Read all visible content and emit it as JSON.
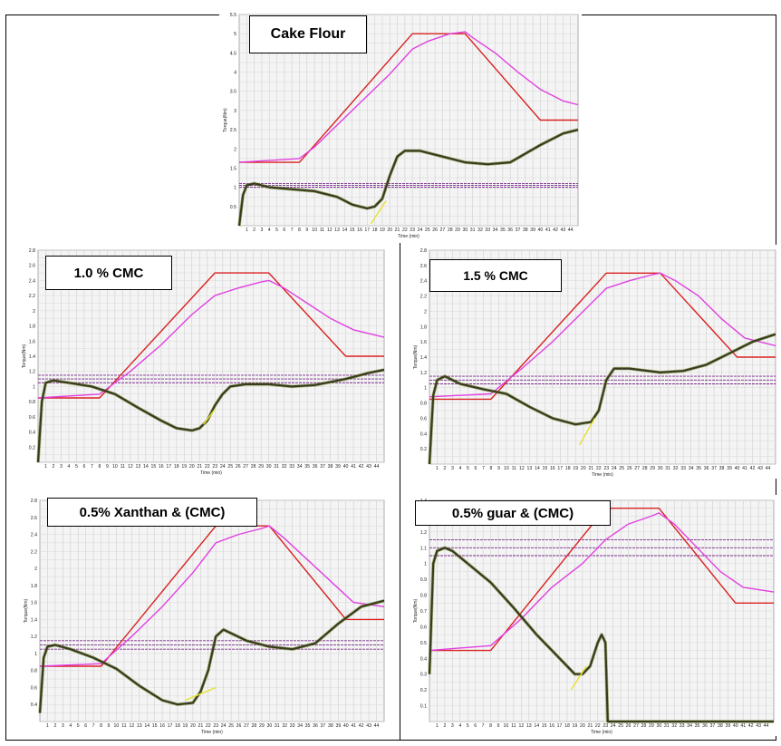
{
  "chart_data": [
    {
      "id": "p-cake",
      "type": "line",
      "title": "Cake Flour",
      "xlabel": "Time (min)",
      "ylabel": "Torque(Nm)",
      "xlim": [
        0,
        45
      ],
      "ylim": [
        0,
        5.5
      ],
      "yticks": [
        0.5,
        1,
        1.5,
        2,
        2.5,
        3,
        3.5,
        4,
        4.5,
        5,
        5.5
      ],
      "ytick_labels": [
        "0.5",
        "1",
        "1.5",
        "2",
        "2.5",
        "3",
        "3.5",
        "4",
        "4.5",
        "5",
        "5.5"
      ],
      "xticks": [
        1,
        2,
        3,
        4,
        5,
        6,
        7,
        8,
        9,
        10,
        11,
        12,
        13,
        14,
        15,
        16,
        17,
        18,
        19,
        20,
        21,
        22,
        23,
        24,
        25,
        26,
        27,
        28,
        29,
        30,
        31,
        32,
        33,
        34,
        35,
        36,
        37,
        38,
        39,
        40,
        41,
        42,
        43,
        44
      ],
      "hlines": [
        1.0,
        1.05,
        1.1
      ],
      "series": [
        {
          "color": "#d92020",
          "x": [
            0,
            8,
            23,
            30,
            40,
            45
          ],
          "y": [
            1.65,
            1.65,
            5.0,
            5.0,
            2.75,
            2.75
          ]
        },
        {
          "color": "#e040e0",
          "x": [
            0,
            8,
            10,
            15,
            20,
            23,
            25,
            28,
            30,
            31,
            34,
            37,
            40,
            43,
            45
          ],
          "y": [
            1.65,
            1.75,
            2.05,
            3.0,
            3.95,
            4.6,
            4.8,
            5.0,
            5.05,
            4.9,
            4.5,
            4.0,
            3.55,
            3.25,
            3.15
          ]
        },
        {
          "color": "#3a3a20",
          "x": [
            0,
            0.5,
            1,
            2,
            4,
            7,
            10,
            13,
            15,
            17,
            18,
            19,
            20,
            21,
            22,
            24,
            27,
            30,
            33,
            36,
            40,
            43,
            45
          ],
          "y": [
            0,
            0.8,
            1.05,
            1.1,
            1.0,
            0.95,
            0.9,
            0.75,
            0.55,
            0.45,
            0.5,
            0.7,
            1.3,
            1.8,
            1.95,
            1.95,
            1.8,
            1.65,
            1.6,
            1.65,
            2.1,
            2.4,
            2.5
          ]
        },
        {
          "color": "#e8e030",
          "x": [
            17.5,
            19.5
          ],
          "y": [
            0.05,
            0.65
          ]
        }
      ]
    },
    {
      "id": "p-cmc10",
      "type": "line",
      "title": "1.0 % CMC",
      "xlabel": "Time (min)",
      "ylabel": "Torque(Nm)",
      "xlim": [
        0,
        45
      ],
      "ylim": [
        0,
        2.8
      ],
      "yticks": [
        0.2,
        0.4,
        0.6,
        0.8,
        1,
        1.2,
        1.4,
        1.6,
        1.8,
        2,
        2.2,
        2.4,
        2.6,
        2.8
      ],
      "ytick_labels": [
        "0.2",
        "0.4",
        "0.6",
        "0.8",
        "1",
        "1.2",
        "1.4",
        "1.6",
        "1.8",
        "2",
        "2.2",
        "2.4",
        "2.6",
        "2.8"
      ],
      "xticks": [
        1,
        2,
        3,
        4,
        5,
        6,
        7,
        8,
        9,
        10,
        11,
        12,
        13,
        14,
        15,
        16,
        17,
        18,
        19,
        20,
        21,
        22,
        23,
        24,
        25,
        26,
        27,
        28,
        29,
        30,
        31,
        32,
        33,
        34,
        35,
        36,
        37,
        38,
        39,
        40,
        41,
        42,
        43,
        44
      ],
      "hlines": [
        1.05,
        1.1,
        1.15
      ],
      "series": [
        {
          "color": "#d92020",
          "x": [
            0,
            8,
            23,
            30,
            40,
            45
          ],
          "y": [
            0.85,
            0.85,
            2.5,
            2.5,
            1.4,
            1.4
          ]
        },
        {
          "color": "#e040e0",
          "x": [
            0,
            8,
            12,
            16,
            20,
            23,
            26,
            29,
            30,
            32,
            35,
            38,
            41,
            45
          ],
          "y": [
            0.85,
            0.9,
            1.2,
            1.55,
            1.95,
            2.2,
            2.3,
            2.38,
            2.4,
            2.3,
            2.1,
            1.9,
            1.75,
            1.65
          ]
        },
        {
          "color": "#3a3a20",
          "x": [
            0,
            0.5,
            1,
            2,
            4,
            7,
            10,
            13,
            16,
            18,
            20,
            21,
            22,
            23,
            24,
            25,
            27,
            30,
            33,
            36,
            40,
            43,
            45
          ],
          "y": [
            0,
            0.8,
            1.05,
            1.08,
            1.05,
            1.0,
            0.9,
            0.72,
            0.55,
            0.45,
            0.42,
            0.45,
            0.55,
            0.75,
            0.9,
            1.0,
            1.03,
            1.03,
            1.0,
            1.02,
            1.1,
            1.18,
            1.22
          ]
        },
        {
          "color": "#e8e030",
          "x": [
            21.5,
            23
          ],
          "y": [
            0.5,
            0.7
          ]
        }
      ]
    },
    {
      "id": "p-cmc15",
      "type": "line",
      "title": "1.5 % CMC",
      "xlabel": "Time (min)",
      "ylabel": "Torque(Nm)",
      "xlim": [
        0,
        45
      ],
      "ylim": [
        0,
        2.8
      ],
      "yticks": [
        0.2,
        0.4,
        0.6,
        0.8,
        1,
        1.2,
        1.4,
        1.6,
        1.8,
        2,
        2.2,
        2.4,
        2.6,
        2.8
      ],
      "ytick_labels": [
        "0.2",
        "0.4",
        "0.6",
        "0.8",
        "1",
        "1.2",
        "1.4",
        "1.6",
        "1.8",
        "2",
        "2.2",
        "2.4",
        "2.6",
        "2.8"
      ],
      "xticks": [
        1,
        2,
        3,
        4,
        5,
        6,
        7,
        8,
        9,
        10,
        11,
        12,
        13,
        14,
        15,
        16,
        17,
        18,
        19,
        20,
        21,
        22,
        23,
        24,
        25,
        26,
        27,
        28,
        29,
        30,
        31,
        32,
        33,
        34,
        35,
        36,
        37,
        38,
        39,
        40,
        41,
        42,
        43,
        44
      ],
      "hlines": [
        1.05,
        1.1,
        1.15
      ],
      "series": [
        {
          "color": "#d92020",
          "x": [
            0,
            8,
            23,
            30,
            40,
            45
          ],
          "y": [
            0.85,
            0.85,
            2.5,
            2.5,
            1.4,
            1.4
          ]
        },
        {
          "color": "#e040e0",
          "x": [
            0,
            8,
            12,
            16,
            20,
            23,
            26,
            29,
            30,
            32,
            35,
            38,
            41,
            45
          ],
          "y": [
            0.88,
            0.92,
            1.25,
            1.6,
            2.0,
            2.3,
            2.4,
            2.48,
            2.5,
            2.4,
            2.2,
            1.9,
            1.65,
            1.55
          ]
        },
        {
          "color": "#3a3a20",
          "x": [
            0,
            0.5,
            1,
            2,
            4,
            7,
            10,
            13,
            16,
            19,
            21,
            22,
            23,
            24,
            26,
            30,
            33,
            36,
            39,
            42,
            45
          ],
          "y": [
            0,
            0.9,
            1.1,
            1.15,
            1.05,
            0.98,
            0.92,
            0.75,
            0.6,
            0.52,
            0.55,
            0.7,
            1.1,
            1.25,
            1.25,
            1.2,
            1.22,
            1.3,
            1.45,
            1.6,
            1.7
          ]
        },
        {
          "color": "#e8e030",
          "x": [
            19.5,
            21.5
          ],
          "y": [
            0.25,
            0.6
          ]
        }
      ]
    },
    {
      "id": "p-xan",
      "type": "line",
      "title": "0.5% Xanthan & (CMC)",
      "xlabel": "Time (min)",
      "ylabel": "Torque(Nm)",
      "xlim": [
        0,
        45
      ],
      "ylim": [
        0.2,
        2.8
      ],
      "yticks": [
        0.4,
        0.6,
        0.8,
        1,
        1.2,
        1.4,
        1.6,
        1.8,
        2,
        2.2,
        2.4,
        2.6,
        2.8
      ],
      "ytick_labels": [
        "0.4",
        "0.6",
        "0.8",
        "1",
        "1.2",
        "1.4",
        "1.6",
        "1.8",
        "2",
        "2.2",
        "2.4",
        "2.6",
        "2.8"
      ],
      "xticks": [
        1,
        2,
        3,
        4,
        5,
        6,
        7,
        8,
        9,
        10,
        11,
        12,
        13,
        14,
        15,
        16,
        17,
        18,
        19,
        20,
        21,
        22,
        23,
        24,
        25,
        26,
        27,
        28,
        29,
        30,
        31,
        32,
        33,
        34,
        35,
        36,
        37,
        38,
        39,
        40,
        41,
        42,
        43,
        44
      ],
      "hlines": [
        1.05,
        1.1,
        1.15
      ],
      "series": [
        {
          "color": "#d92020",
          "x": [
            0,
            8,
            23,
            30,
            40,
            45
          ],
          "y": [
            0.85,
            0.85,
            2.5,
            2.5,
            1.4,
            1.4
          ]
        },
        {
          "color": "#e040e0",
          "x": [
            0,
            8,
            12,
            16,
            20,
            23,
            26,
            29,
            30,
            32,
            35,
            38,
            41,
            45
          ],
          "y": [
            0.85,
            0.88,
            1.2,
            1.55,
            1.95,
            2.3,
            2.4,
            2.47,
            2.5,
            2.35,
            2.1,
            1.85,
            1.6,
            1.55
          ]
        },
        {
          "color": "#3a3a20",
          "x": [
            0,
            0.5,
            1,
            2,
            4,
            7,
            10,
            13,
            16,
            18,
            20,
            21,
            22,
            23,
            24,
            27,
            30,
            33,
            36,
            39,
            42,
            45
          ],
          "y": [
            0.3,
            0.95,
            1.08,
            1.1,
            1.05,
            0.95,
            0.82,
            0.62,
            0.45,
            0.4,
            0.42,
            0.55,
            0.8,
            1.2,
            1.28,
            1.15,
            1.08,
            1.05,
            1.12,
            1.35,
            1.55,
            1.62
          ]
        },
        {
          "color": "#e8e030",
          "x": [
            19,
            23
          ],
          "y": [
            0.45,
            0.6
          ]
        }
      ]
    },
    {
      "id": "p-guar",
      "type": "line",
      "title": "0.5% guar & (CMC)",
      "xlabel": "Time (min)",
      "ylabel": "Torque(Nm)",
      "xlim": [
        0,
        45
      ],
      "ylim": [
        0,
        1.4
      ],
      "yticks": [
        0.1,
        0.2,
        0.3,
        0.4,
        0.5,
        0.6,
        0.7,
        0.8,
        0.9,
        1,
        1.1,
        1.2,
        1.3,
        1.4
      ],
      "ytick_labels": [
        "0.1",
        "0.2",
        "0.3",
        "0.4",
        "0.5",
        "0.6",
        "0.7",
        "0.8",
        "0.9",
        "1",
        "1.1",
        "1.2",
        "1.3",
        "1.4"
      ],
      "xticks": [
        1,
        2,
        3,
        4,
        5,
        6,
        7,
        8,
        9,
        10,
        11,
        12,
        13,
        14,
        15,
        16,
        17,
        18,
        19,
        20,
        21,
        22,
        23,
        24,
        25,
        26,
        27,
        28,
        29,
        30,
        31,
        32,
        33,
        34,
        35,
        36,
        37,
        38,
        39,
        40,
        41,
        42,
        43,
        44
      ],
      "hlines": [
        1.05,
        1.1,
        1.15
      ],
      "series": [
        {
          "color": "#d92020",
          "x": [
            0,
            8,
            23,
            30,
            40,
            45
          ],
          "y": [
            0.45,
            0.45,
            1.35,
            1.35,
            0.75,
            0.75
          ]
        },
        {
          "color": "#e040e0",
          "x": [
            0,
            8,
            12,
            16,
            20,
            23,
            26,
            29,
            30,
            32,
            35,
            38,
            41,
            45
          ],
          "y": [
            0.45,
            0.48,
            0.65,
            0.85,
            1.0,
            1.15,
            1.25,
            1.3,
            1.32,
            1.25,
            1.1,
            0.95,
            0.85,
            0.82
          ]
        },
        {
          "color": "#3a3a20",
          "x": [
            0,
            0.5,
            1,
            2,
            3,
            5,
            8,
            11,
            14,
            17,
            19,
            20,
            21,
            22,
            22.5,
            23,
            23.3,
            24,
            45
          ],
          "y": [
            0.3,
            1.0,
            1.08,
            1.1,
            1.08,
            1.0,
            0.88,
            0.72,
            0.55,
            0.4,
            0.3,
            0.3,
            0.35,
            0.5,
            0.55,
            0.5,
            0.0,
            0.0,
            0.0
          ]
        },
        {
          "color": "#e8e030",
          "x": [
            18.5,
            20.5
          ],
          "y": [
            0.2,
            0.35
          ]
        }
      ]
    }
  ]
}
